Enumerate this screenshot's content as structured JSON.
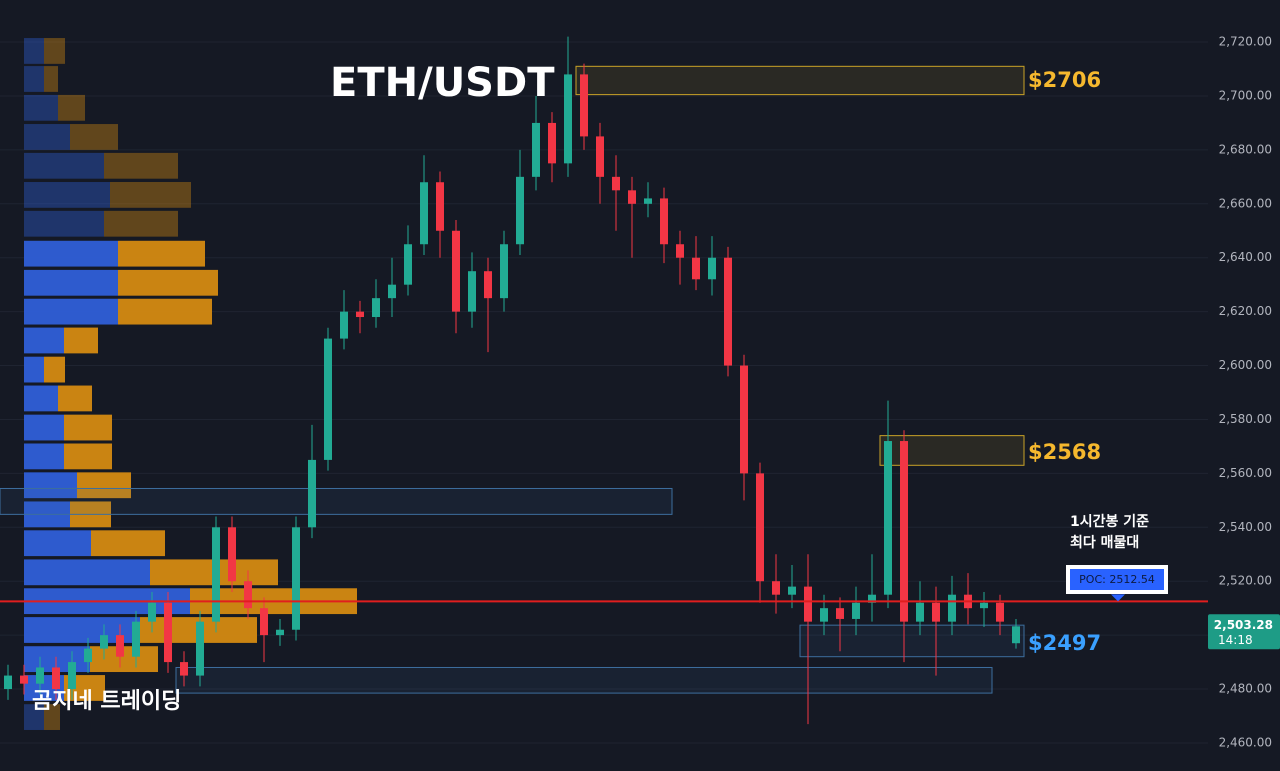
{
  "chart_data": [
    {
      "type": "candlestick",
      "title": "ETH/USDT",
      "watermark": "곰지네 트레이딩",
      "categories": [
        null,
        null,
        null,
        null,
        null,
        null,
        null,
        null,
        null,
        null,
        null,
        null,
        null,
        null,
        null,
        null,
        null,
        null,
        null,
        null,
        null,
        null,
        null,
        null,
        null,
        null,
        null,
        null,
        null,
        null,
        null,
        null,
        null,
        null,
        null,
        null,
        null,
        null,
        null,
        null,
        null,
        null,
        null,
        null,
        null,
        null,
        null,
        null,
        null,
        null,
        null,
        null,
        null,
        null,
        null,
        null,
        null,
        null,
        null,
        null,
        null,
        null,
        null,
        null
      ],
      "open": [
        2480,
        2485,
        2482,
        2488,
        2480,
        2490,
        2495,
        2500,
        2492,
        2505,
        2512,
        2490,
        2485,
        2505,
        2540,
        2520,
        2510,
        2500,
        2502,
        2540,
        2565,
        2610,
        2620,
        2618,
        2625,
        2630,
        2645,
        2668,
        2650,
        2620,
        2635,
        2625,
        2645,
        2670,
        2690,
        2675,
        2708,
        2685,
        2670,
        2665,
        2660,
        2662,
        2645,
        2640,
        2632,
        2640,
        2600,
        2560,
        2520,
        2515,
        2518,
        2505,
        2510,
        2506,
        2512,
        2515,
        2572,
        2505,
        2512,
        2505,
        2515,
        2510,
        2512,
        2497
      ],
      "high": [
        2489,
        2489,
        2492,
        2492,
        2494,
        2499,
        2504,
        2504,
        2509,
        2516,
        2516,
        2494,
        2509,
        2544,
        2544,
        2524,
        2514,
        2506,
        2544,
        2578,
        2614,
        2628,
        2624,
        2632,
        2640,
        2652,
        2678,
        2672,
        2654,
        2642,
        2640,
        2650,
        2680,
        2700,
        2694,
        2722,
        2712,
        2690,
        2678,
        2670,
        2668,
        2666,
        2650,
        2648,
        2648,
        2644,
        2604,
        2564,
        2530,
        2526,
        2530,
        2515,
        2514,
        2518,
        2530,
        2587,
        2576,
        2520,
        2518,
        2522,
        2523,
        2516,
        2515,
        2506
      ],
      "low": [
        2476,
        2478,
        2478,
        2476,
        2476,
        2486,
        2491,
        2488,
        2488,
        2501,
        2486,
        2481,
        2481,
        2501,
        2516,
        2506,
        2490,
        2496,
        2498,
        2536,
        2561,
        2606,
        2612,
        2614,
        2618,
        2626,
        2641,
        2640,
        2612,
        2614,
        2605,
        2620,
        2641,
        2665,
        2668,
        2670,
        2680,
        2660,
        2650,
        2640,
        2655,
        2638,
        2630,
        2628,
        2626,
        2596,
        2550,
        2512,
        2508,
        2510,
        2467,
        2500,
        2494,
        2500,
        2505,
        2510,
        2490,
        2500,
        2485,
        2500,
        2504,
        2503,
        2500,
        2495
      ],
      "close": [
        2485,
        2482,
        2488,
        2480,
        2490,
        2495,
        2500,
        2492,
        2505,
        2512,
        2490,
        2485,
        2505,
        2540,
        2520,
        2510,
        2500,
        2502,
        2540,
        2565,
        2610,
        2620,
        2618,
        2625,
        2630,
        2645,
        2668,
        2650,
        2620,
        2635,
        2625,
        2645,
        2670,
        2690,
        2675,
        2708,
        2685,
        2670,
        2665,
        2660,
        2662,
        2645,
        2640,
        2632,
        2640,
        2600,
        2560,
        2520,
        2515,
        2518,
        2505,
        2510,
        2506,
        2512,
        2515,
        2572,
        2505,
        2512,
        2505,
        2515,
        2510,
        2512,
        2505,
        2503.28
      ],
      "up_color": "#22ab94",
      "down_color": "#f23645",
      "ylim": [
        2449.6,
        2735.6
      ],
      "yticks": [
        {
          "value": 2460,
          "label": "2,460.00"
        },
        {
          "value": 2480,
          "label": "2,480.00"
        },
        {
          "value": 2500,
          "label": "2,500.00"
        },
        {
          "value": 2520,
          "label": "2,520.00"
        },
        {
          "value": 2540,
          "label": "2,540.00"
        },
        {
          "value": 2560,
          "label": "2,560.00"
        },
        {
          "value": 2580,
          "label": "2,580.00"
        },
        {
          "value": 2600,
          "label": "2,600.00"
        },
        {
          "value": 2620,
          "label": "2,620.00"
        },
        {
          "value": 2640,
          "label": "2,640.00"
        },
        {
          "value": 2660,
          "label": "2,660.00"
        },
        {
          "value": 2680,
          "label": "2,680.00"
        },
        {
          "value": 2700,
          "label": "2,700.00"
        },
        {
          "value": 2720,
          "label": "2,720.00"
        }
      ],
      "grid": true,
      "zones": [
        {
          "label": "$2706",
          "value": 2706,
          "low": 2700.5,
          "high": 2711,
          "start": 36,
          "end": 63,
          "color": "#c9a227",
          "label_color": "#f5b82e"
        },
        {
          "label": "$2568",
          "value": 2568,
          "low": 2563,
          "high": 2574,
          "start": 55,
          "end": 63,
          "color": "#c9a227",
          "label_color": "#f5b82e"
        },
        {
          "label": "$2497",
          "value": 2497,
          "low": 2492,
          "high": 2503.7,
          "start": 50,
          "end": 63,
          "color": "#3d6e9e",
          "label_color": "#3aa0ff"
        },
        {
          "low": 2544.8,
          "high": 2554.4,
          "start": 0,
          "end": 41,
          "color": "#3d6e9e"
        },
        {
          "low": 2478.5,
          "high": 2488,
          "start": 11,
          "end": 61,
          "color": "#3d6e9e"
        }
      ],
      "poc": {
        "value": 2512.54,
        "label": "POC: 2512.54",
        "color": "#e01e1e"
      },
      "note_lines": [
        "1시간봉 기준",
        "최다 매물대"
      ],
      "last_price": {
        "value": 2503.28,
        "label": "2,503.28"
      },
      "countdown": "14:18"
    },
    {
      "type": "volume_profile",
      "levels": [
        2716.7,
        2706.3,
        2695.6,
        2684.8,
        2674.1,
        2663.3,
        2652.6,
        2641.5,
        2630.7,
        2620,
        2609.3,
        2598.5,
        2587.8,
        2577,
        2566.3,
        2555.6,
        2544.8,
        2534.1,
        2523.3,
        2512.6,
        2501.9,
        2491.1,
        2480.4,
        2469.6
      ],
      "series": [
        {
          "color": "#2f5fd8",
          "values": [
            20,
            20,
            34,
            46,
            80,
            86,
            80,
            94,
            94,
            94,
            40,
            20,
            34,
            40,
            40,
            53,
            46,
            67,
            126,
            166,
            116,
            66,
            40,
            20
          ]
        },
        {
          "color": "#d48a12",
          "values": [
            21,
            14,
            27,
            48,
            74,
            81,
            74,
            87,
            100,
            94,
            34,
            21,
            34,
            48,
            48,
            54,
            41,
            74,
            128,
            167,
            117,
            68,
            41,
            16
          ]
        }
      ]
    }
  ]
}
